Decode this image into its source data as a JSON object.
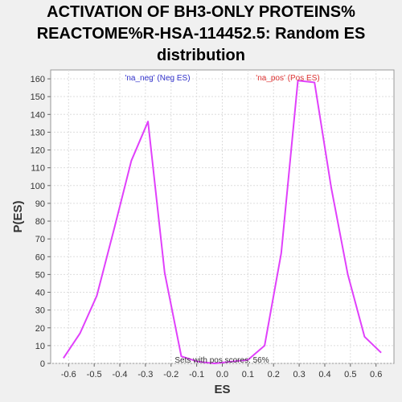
{
  "chart_data": {
    "type": "line",
    "title_lines": [
      "ACTIVATION OF BH3-ONLY PROTEINS%",
      "REACTOME%R-HSA-114452.5: Random ES",
      "distribution"
    ],
    "xlabel": "ES",
    "ylabel": "P(ES)",
    "xlim": [
      -0.67,
      0.67
    ],
    "ylim": [
      0,
      165
    ],
    "xticks": [
      -0.6,
      -0.5,
      -0.4,
      -0.3,
      -0.2,
      -0.1,
      0.0,
      0.1,
      0.2,
      0.3,
      0.4,
      0.5,
      0.6
    ],
    "xtick_labels": [
      "-0.6",
      "-0.5",
      "-0.4",
      "-0.3",
      "-0.2",
      "-0.1",
      "0.0",
      "0.1",
      "0.2",
      "0.3",
      "0.4",
      "0.5",
      "0.6"
    ],
    "yticks": [
      0,
      10,
      20,
      30,
      40,
      50,
      60,
      70,
      80,
      90,
      100,
      110,
      120,
      130,
      140,
      150,
      160
    ],
    "grid": true,
    "series": [
      {
        "name": "ES distribution",
        "color": "#e040fb",
        "x": [
          -0.62,
          -0.555,
          -0.49,
          -0.42,
          -0.355,
          -0.29,
          -0.225,
          -0.16,
          -0.095,
          -0.03,
          0.035,
          0.1,
          0.165,
          0.23,
          0.295,
          0.36,
          0.425,
          0.49,
          0.555,
          0.62
        ],
        "y": [
          3,
          17,
          38,
          77,
          114,
          136,
          51,
          4,
          1,
          0,
          1,
          2,
          10,
          62,
          159,
          158,
          99,
          50,
          15,
          6
        ]
      }
    ],
    "annotations": [
      {
        "text": "'na_neg' (Neg ES)",
        "color": "#3333cc"
      },
      {
        "text": "'na_pos' (Pos ES)",
        "color": "#dd3333"
      },
      {
        "text": "Sets with pos scores: 56%",
        "color": "#333333"
      }
    ]
  }
}
